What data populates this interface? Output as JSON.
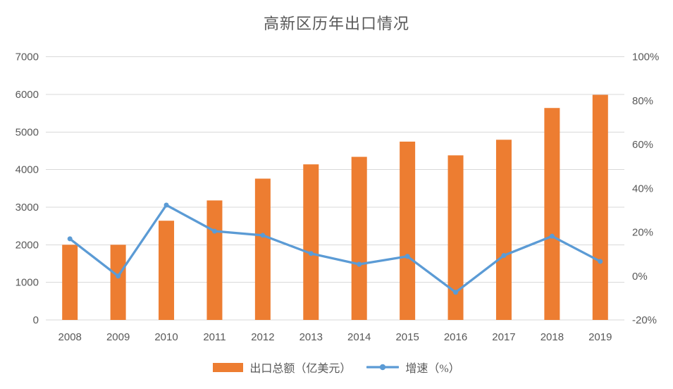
{
  "chart_data": {
    "type": "combo-bar-line",
    "title": "高新区历年出口情况",
    "categories": [
      "2008",
      "2009",
      "2010",
      "2011",
      "2012",
      "2013",
      "2014",
      "2015",
      "2016",
      "2017",
      "2018",
      "2019"
    ],
    "series": [
      {
        "name": "出口总额（亿美元）",
        "type": "bar",
        "axis": "left",
        "color": "#ED7D31",
        "values": [
          2000,
          2000,
          2640,
          3180,
          3760,
          4140,
          4340,
          4745,
          4380,
          4795,
          5640,
          5990
        ]
      },
      {
        "name": "增速（%）",
        "type": "line",
        "axis": "right",
        "color": "#5B9BD5",
        "values": [
          17,
          0,
          32.4,
          20.5,
          18.6,
          10.3,
          5.4,
          9,
          -7.4,
          9.4,
          18.2,
          6.7
        ]
      }
    ],
    "axes": {
      "left": {
        "min": 0,
        "max": 7000,
        "step": 1000,
        "suffix": "",
        "tick_labels": [
          "0",
          "1000",
          "2000",
          "3000",
          "4000",
          "5000",
          "6000",
          "7000"
        ]
      },
      "right": {
        "min": -20,
        "max": 100,
        "step": 20,
        "suffix": "%",
        "tick_labels": [
          "-20%",
          "0%",
          "20%",
          "40%",
          "60%",
          "80%",
          "100%"
        ]
      }
    },
    "grid": true,
    "legend_position": "bottom",
    "colors": {
      "bar": "#ED7D31",
      "line": "#5B9BD5",
      "grid": "#D9D9D9",
      "text": "#595959",
      "background": "#FFFFFF"
    }
  }
}
